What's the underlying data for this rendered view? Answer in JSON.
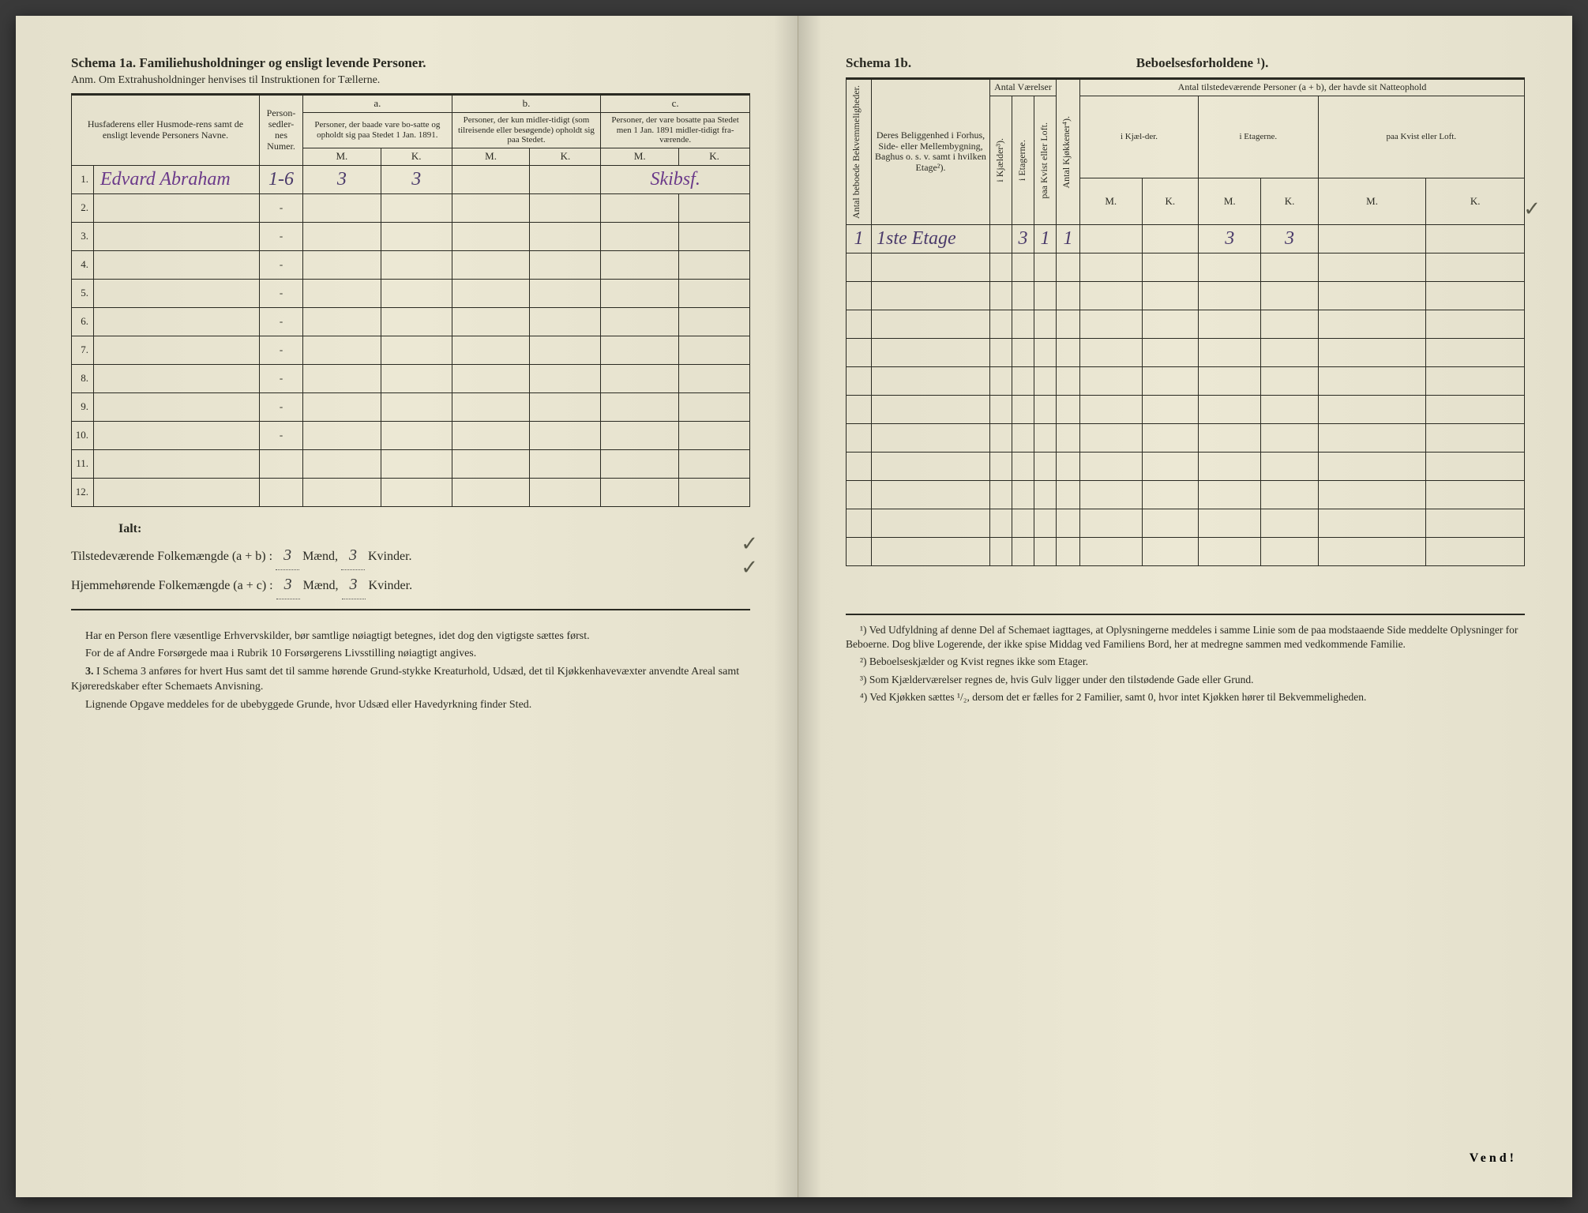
{
  "left": {
    "title": "Schema 1a.  Familiehusholdninger og ensligt levende Personer.",
    "anm": "Anm.  Om Extrahusholdninger henvises til Instruktionen for Tællerne.",
    "col_names": "Husfaderens eller Husmode-rens samt de ensligt levende Personers Navne.",
    "col_personsedler": "Person-sedler-nes Numer.",
    "group_a_label": "a.",
    "group_a": "Personer, der baade vare bo-satte og opholdt sig paa Stedet 1 Jan. 1891.",
    "group_b_label": "b.",
    "group_b": "Personer, der kun midler-tidigt (som tilreisende eller besøgende) opholdt sig paa Stedet.",
    "group_c_label": "c.",
    "group_c": "Personer, der vare bosatte paa Stedet men 1 Jan. 1891 midler-tidigt fra-værende.",
    "mk_m": "M.",
    "mk_k": "K.",
    "rows": [
      {
        "n": "1.",
        "name": "Edvard Abraham",
        "sedler": "1-6",
        "am": "3",
        "ak": "3",
        "bm": "",
        "bk": "",
        "cm": "",
        "ck": "",
        "note": "Skibsf."
      },
      {
        "n": "2.",
        "name": "",
        "sedler": "-",
        "am": "",
        "ak": "",
        "bm": "",
        "bk": "",
        "cm": "",
        "ck": ""
      },
      {
        "n": "3.",
        "name": "",
        "sedler": "-",
        "am": "",
        "ak": "",
        "bm": "",
        "bk": "",
        "cm": "",
        "ck": ""
      },
      {
        "n": "4.",
        "name": "",
        "sedler": "-",
        "am": "",
        "ak": "",
        "bm": "",
        "bk": "",
        "cm": "",
        "ck": ""
      },
      {
        "n": "5.",
        "name": "",
        "sedler": "-",
        "am": "",
        "ak": "",
        "bm": "",
        "bk": "",
        "cm": "",
        "ck": ""
      },
      {
        "n": "6.",
        "name": "",
        "sedler": "-",
        "am": "",
        "ak": "",
        "bm": "",
        "bk": "",
        "cm": "",
        "ck": ""
      },
      {
        "n": "7.",
        "name": "",
        "sedler": "-",
        "am": "",
        "ak": "",
        "bm": "",
        "bk": "",
        "cm": "",
        "ck": ""
      },
      {
        "n": "8.",
        "name": "",
        "sedler": "-",
        "am": "",
        "ak": "",
        "bm": "",
        "bk": "",
        "cm": "",
        "ck": ""
      },
      {
        "n": "9.",
        "name": "",
        "sedler": "-",
        "am": "",
        "ak": "",
        "bm": "",
        "bk": "",
        "cm": "",
        "ck": ""
      },
      {
        "n": "10.",
        "name": "",
        "sedler": "-",
        "am": "",
        "ak": "",
        "bm": "",
        "bk": "",
        "cm": "",
        "ck": ""
      },
      {
        "n": "11.",
        "name": "",
        "sedler": "",
        "am": "",
        "ak": "",
        "bm": "",
        "bk": "",
        "cm": "",
        "ck": ""
      },
      {
        "n": "12.",
        "name": "",
        "sedler": "",
        "am": "",
        "ak": "",
        "bm": "",
        "bk": "",
        "cm": "",
        "ck": ""
      }
    ],
    "ialt": "Ialt:",
    "tilstede_label": "Tilstedeværende Folkemængde (a + b) :",
    "hjemme_label": "Hjemmehørende Folkemængde (a + c) :",
    "maend": "Mænd,",
    "kvinder": "Kvinder.",
    "tilstede_m": "3",
    "tilstede_k": "3",
    "hjemme_m": "3",
    "hjemme_k": "3",
    "fn1": "Har en Person flere væsentlige Erhvervskilder, bør samtlige nøiagtigt betegnes, idet dog den vigtigste sættes først.",
    "fn2": "For de af Andre Forsørgede maa i Rubrik 10 Forsørgerens Livsstilling nøiagtigt angives.",
    "fn3_label": "3.",
    "fn3": "I Schema 3 anføres for hvert Hus samt det til samme hørende Grund-stykke Kreaturhold, Udsæd, det til Kjøkkenhavevæxter anvendte Areal samt Kjøreredskaber efter Schemaets Anvisning.",
    "fn4": "Lignende Opgave meddeles for de ubebyggede Grunde, hvor Udsæd eller Havedyrkning finder Sted."
  },
  "right": {
    "title_a": "Schema 1b.",
    "title_b": "Beboelsesforholdene ¹).",
    "col_antal_bek": "Antal beboede Bekvemmeligheder.",
    "col_beligg": "Deres Beliggenhed i Forhus, Side- eller Mellembygning, Baghus o. s. v. samt i hvilken Etage²).",
    "col_antal_vaer": "Antal Værelser",
    "col_kjaelder": "i Kjælder³).",
    "col_etagerne": "i Etagerne.",
    "col_kvist": "paa Kvist eller Loft.",
    "col_kjokkener": "Antal Kjøkkener⁴).",
    "col_tilstede": "Antal tilstedeværende Personer (a + b), der havde sit Natteophold",
    "sub_ikjael": "i Kjæl-der.",
    "sub_ietag": "i Etagerne.",
    "sub_kvist": "paa Kvist eller Loft.",
    "mk_m": "M.",
    "mk_k": "K.",
    "rows": [
      {
        "bek": "1",
        "beligg": "1ste Etage",
        "kj": "",
        "et": "3",
        "kv": "1",
        "kk": "1",
        "km": "",
        "kk2": "",
        "em": "3",
        "ek": "3",
        "qm": "",
        "qk": ""
      },
      {
        "bek": "",
        "beligg": "",
        "kj": "",
        "et": "",
        "kv": "",
        "kk": "",
        "km": "",
        "kk2": "",
        "em": "",
        "ek": "",
        "qm": "",
        "qk": ""
      },
      {
        "bek": "",
        "beligg": "",
        "kj": "",
        "et": "",
        "kv": "",
        "kk": "",
        "km": "",
        "kk2": "",
        "em": "",
        "ek": "",
        "qm": "",
        "qk": ""
      },
      {
        "bek": "",
        "beligg": "",
        "kj": "",
        "et": "",
        "kv": "",
        "kk": "",
        "km": "",
        "kk2": "",
        "em": "",
        "ek": "",
        "qm": "",
        "qk": ""
      },
      {
        "bek": "",
        "beligg": "",
        "kj": "",
        "et": "",
        "kv": "",
        "kk": "",
        "km": "",
        "kk2": "",
        "em": "",
        "ek": "",
        "qm": "",
        "qk": ""
      },
      {
        "bek": "",
        "beligg": "",
        "kj": "",
        "et": "",
        "kv": "",
        "kk": "",
        "km": "",
        "kk2": "",
        "em": "",
        "ek": "",
        "qm": "",
        "qk": ""
      },
      {
        "bek": "",
        "beligg": "",
        "kj": "",
        "et": "",
        "kv": "",
        "kk": "",
        "km": "",
        "kk2": "",
        "em": "",
        "ek": "",
        "qm": "",
        "qk": ""
      },
      {
        "bek": "",
        "beligg": "",
        "kj": "",
        "et": "",
        "kv": "",
        "kk": "",
        "km": "",
        "kk2": "",
        "em": "",
        "ek": "",
        "qm": "",
        "qk": ""
      },
      {
        "bek": "",
        "beligg": "",
        "kj": "",
        "et": "",
        "kv": "",
        "kk": "",
        "km": "",
        "kk2": "",
        "em": "",
        "ek": "",
        "qm": "",
        "qk": ""
      },
      {
        "bek": "",
        "beligg": "",
        "kj": "",
        "et": "",
        "kv": "",
        "kk": "",
        "km": "",
        "kk2": "",
        "em": "",
        "ek": "",
        "qm": "",
        "qk": ""
      },
      {
        "bek": "",
        "beligg": "",
        "kj": "",
        "et": "",
        "kv": "",
        "kk": "",
        "km": "",
        "kk2": "",
        "em": "",
        "ek": "",
        "qm": "",
        "qk": ""
      },
      {
        "bek": "",
        "beligg": "",
        "kj": "",
        "et": "",
        "kv": "",
        "kk": "",
        "km": "",
        "kk2": "",
        "em": "",
        "ek": "",
        "qm": "",
        "qk": ""
      }
    ],
    "fn1": "¹) Ved Udfyldning af denne Del af Schemaet iagttages, at Oplysningerne meddeles i samme Linie som de paa modstaaende Side meddelte Oplysninger for Beboerne. Dog blive Logerende, der ikke spise Middag ved Familiens Bord, her at medregne sammen med vedkommende Familie.",
    "fn2": "²) Beboelseskjælder og Kvist regnes ikke som Etager.",
    "fn3": "³) Som Kjælderværelser regnes de, hvis Gulv ligger under den tilstødende Gade eller Grund.",
    "fn4": "⁴) Ved Kjøkken sættes ¹/₂, dersom det er fælles for 2 Familier, samt 0, hvor intet Kjøkken hører til Bekvemmeligheden.",
    "vend": "Vend!"
  }
}
